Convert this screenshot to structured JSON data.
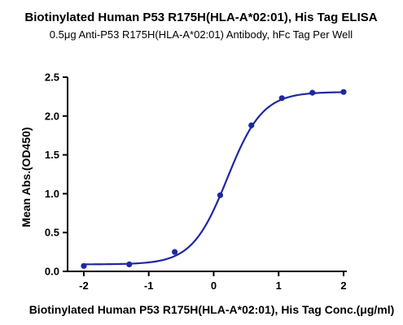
{
  "chart_data": {
    "type": "scatter",
    "title": "Biotinylated Human P53 R175H(HLA-A*02:01), His Tag ELISA",
    "subtitle": "0.5μg Anti-P53 R175H(HLA-A*02:01) Antibody, hFc Tag Per Well",
    "xlabel": "Biotinylated Human P53 R175H(HLA-A*02:01), His Tag Conc.(μg/ml)",
    "ylabel": "Mean Abs.(OD450)",
    "xlim": [
      -2.25,
      2.05
    ],
    "ylim": [
      0,
      2.5
    ],
    "x_ticks": [
      -2,
      -1,
      0,
      1,
      2
    ],
    "x_tick_labels": [
      "-2",
      "-1",
      "0",
      "1",
      "2"
    ],
    "y_ticks": [
      0,
      0.5,
      1.0,
      1.5,
      2.0,
      2.5
    ],
    "y_tick_labels": [
      "0.0",
      "0.5",
      "1.0",
      "1.5",
      "2.0",
      "2.5"
    ],
    "grid": false,
    "colors": {
      "series": "#1f28a0",
      "axis": "#000000"
    },
    "series": [
      {
        "x": [
          -2.0,
          -1.3,
          -0.6,
          0.1,
          0.58,
          1.05,
          1.52,
          2.0
        ],
        "y": [
          0.07,
          0.09,
          0.25,
          0.98,
          1.88,
          2.23,
          2.3,
          2.31
        ],
        "fit": {
          "model": "4PL",
          "bottom": 0.09,
          "top": 2.31,
          "logEC50": 0.21,
          "hill": 1.6
        }
      }
    ]
  }
}
